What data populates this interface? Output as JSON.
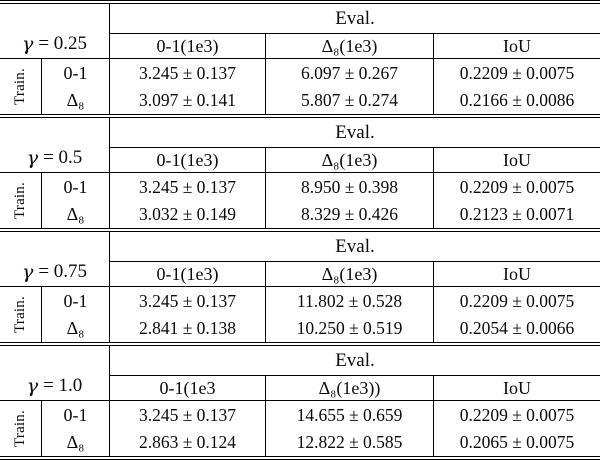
{
  "table": {
    "eval_label": "Eval.",
    "train_label": "Train.",
    "blocks": [
      {
        "gamma_symbol": "γ",
        "gamma_value": "= 0.25",
        "columns": [
          "0-1(1e3)",
          "Δ₈(1e3)",
          "IoU"
        ],
        "rows": [
          {
            "label": "0-1",
            "values": [
              "3.245 ± 0.137",
              "6.097 ± 0.267",
              "0.2209 ± 0.0075"
            ]
          },
          {
            "label": "Δ₈",
            "values": [
              "3.097 ± 0.141",
              "5.807 ± 0.274",
              "0.2166 ± 0.0086"
            ]
          }
        ]
      },
      {
        "gamma_symbol": "γ",
        "gamma_value": "= 0.5",
        "columns": [
          "0-1(1e3)",
          "Δ₈(1e3)",
          "IoU"
        ],
        "rows": [
          {
            "label": "0-1",
            "values": [
              "3.245 ± 0.137",
              "8.950 ± 0.398",
              "0.2209 ± 0.0075"
            ]
          },
          {
            "label": "Δ₈",
            "values": [
              "3.032 ± 0.149",
              "8.329 ± 0.426",
              "0.2123 ± 0.0071"
            ]
          }
        ]
      },
      {
        "gamma_symbol": "γ",
        "gamma_value": "= 0.75",
        "columns": [
          "0-1(1e3)",
          "Δ₈(1e3)",
          "IoU"
        ],
        "rows": [
          {
            "label": "0-1",
            "values": [
              "3.245 ± 0.137",
              "11.802 ± 0.528",
              "0.2209 ± 0.0075"
            ]
          },
          {
            "label": "Δ₈",
            "values": [
              "2.841 ± 0.138",
              "10.250 ± 0.519",
              "0.2054 ± 0.0066"
            ]
          }
        ]
      },
      {
        "gamma_symbol": "γ",
        "gamma_value": "= 1.0",
        "columns": [
          "0-1(1e3",
          "Δ₈(1e3))",
          "IoU"
        ],
        "rows": [
          {
            "label": "0-1",
            "values": [
              "3.245 ± 0.137",
              "14.655 ± 0.659",
              "0.2209 ± 0.0075"
            ]
          },
          {
            "label": "Δ₈",
            "values": [
              "2.863 ± 0.124",
              "12.822 ± 0.585",
              "0.2065 ± 0.0075"
            ]
          }
        ]
      }
    ]
  }
}
